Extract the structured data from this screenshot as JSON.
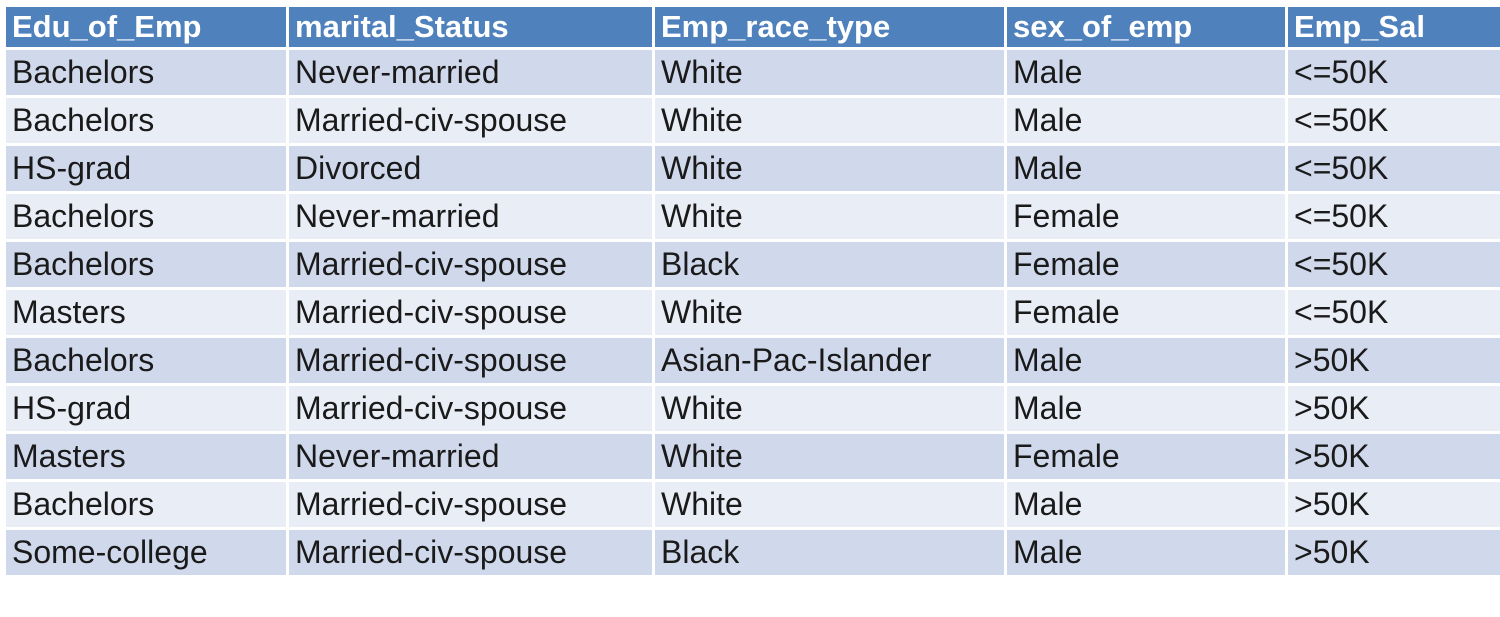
{
  "table": {
    "headers": [
      "Edu_of_Emp",
      "marital_Status",
      "Emp_race_type",
      "sex_of_emp",
      "Emp_Sal"
    ],
    "rows": [
      [
        "Bachelors",
        "Never-married",
        "White",
        "Male",
        "<=50K"
      ],
      [
        "Bachelors",
        "Married-civ-spouse",
        "White",
        "Male",
        "<=50K"
      ],
      [
        "HS-grad",
        "Divorced",
        "White",
        "Male",
        "<=50K"
      ],
      [
        "Bachelors",
        "Never-married",
        "White",
        "Female",
        "<=50K"
      ],
      [
        "Bachelors",
        "Married-civ-spouse",
        "Black",
        "Female",
        "<=50K"
      ],
      [
        "Masters",
        "Married-civ-spouse",
        "White",
        "Female",
        "<=50K"
      ],
      [
        "Bachelors",
        "Married-civ-spouse",
        "Asian-Pac-Islander",
        "Male",
        ">50K"
      ],
      [
        "HS-grad",
        "Married-civ-spouse",
        "White",
        "Male",
        ">50K"
      ],
      [
        "Masters",
        "Never-married",
        "White",
        "Female",
        ">50K"
      ],
      [
        "Bachelors",
        "Married-civ-spouse",
        "White",
        "Male",
        ">50K"
      ],
      [
        "Some-college",
        "Married-civ-spouse",
        "Black",
        "Male",
        ">50K"
      ]
    ]
  },
  "colors": {
    "header_bg": "#4f81bd",
    "header_text": "#ffffff",
    "row_odd_bg": "#d0d8ec",
    "row_even_bg": "#e9edf6",
    "cell_text": "#1a1a1a"
  }
}
